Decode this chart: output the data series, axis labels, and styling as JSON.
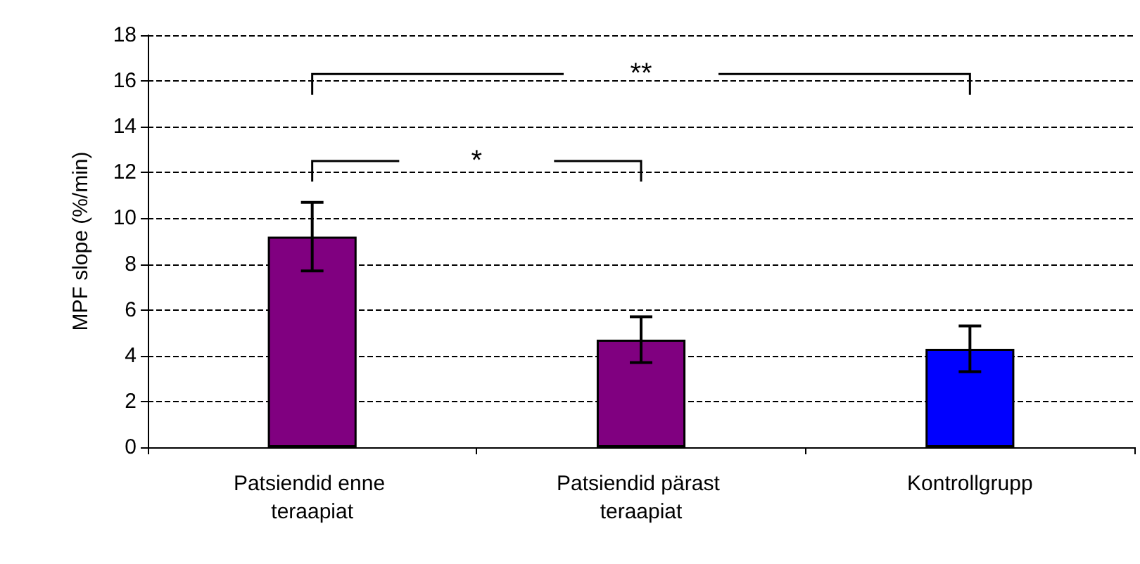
{
  "chart_data": {
    "type": "bar",
    "ylabel": "MPF slope (%/min)",
    "categories": [
      "Patsiendid enne teraapiat",
      "Patsiendid pärast teraapiat",
      "Kontrollgrupp"
    ],
    "values": [
      9.2,
      4.7,
      4.3
    ],
    "colors": [
      "#800080",
      "#800080",
      "#0000ff"
    ],
    "errors": [
      [
        7.7,
        10.7
      ],
      [
        3.7,
        5.7
      ],
      [
        3.3,
        5.3
      ]
    ],
    "ylim": [
      0,
      18
    ],
    "yticks": [
      0,
      2,
      4,
      6,
      8,
      10,
      12,
      14,
      16,
      18
    ],
    "grid": "y",
    "annotations": [
      "*",
      "**"
    ]
  }
}
